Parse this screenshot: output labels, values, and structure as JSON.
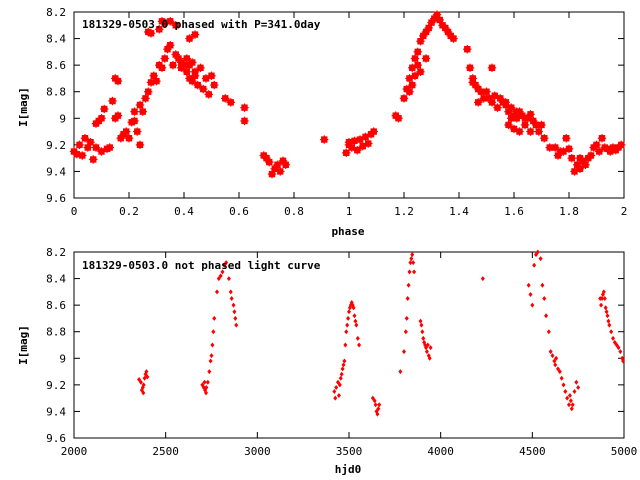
{
  "colors": {
    "data": "#ff0000",
    "axis": "#000000",
    "background": "#ffffff"
  },
  "chart_data": [
    {
      "type": "scatter",
      "title": "181329-0503.0 phased with P=341.0day",
      "xlabel": "phase",
      "ylabel": "I[mag]",
      "xlim": [
        0,
        2
      ],
      "ylim": [
        9.6,
        8.2
      ],
      "y_inverted": true,
      "xticks": [
        "0",
        "0.2",
        "0.4",
        "0.6",
        "0.8",
        "1",
        "1.2",
        "1.4",
        "1.6",
        "1.8",
        "2"
      ],
      "yticks": [
        "8.2",
        "8.4",
        "8.6",
        "8.8",
        "9",
        "9.2",
        "9.4",
        "9.6"
      ],
      "grid": false,
      "marker": "filled-box-large",
      "points": [
        [
          0.0,
          9.25
        ],
        [
          0.01,
          9.27
        ],
        [
          0.02,
          9.2
        ],
        [
          0.03,
          9.28
        ],
        [
          0.04,
          9.15
        ],
        [
          0.05,
          9.22
        ],
        [
          0.06,
          9.18
        ],
        [
          0.07,
          9.31
        ],
        [
          0.08,
          9.04
        ],
        [
          0.09,
          9.02
        ],
        [
          0.1,
          9.0
        ],
        [
          0.08,
          9.22
        ],
        [
          0.1,
          9.25
        ],
        [
          0.11,
          8.93
        ],
        [
          0.12,
          9.23
        ],
        [
          0.13,
          9.22
        ],
        [
          0.14,
          8.87
        ],
        [
          0.15,
          9.0
        ],
        [
          0.16,
          8.98
        ],
        [
          0.17,
          9.15
        ],
        [
          0.18,
          9.12
        ],
        [
          0.19,
          9.1
        ],
        [
          0.15,
          8.7
        ],
        [
          0.16,
          8.72
        ],
        [
          0.2,
          9.15
        ],
        [
          0.21,
          9.03
        ],
        [
          0.22,
          9.02
        ],
        [
          0.23,
          9.1
        ],
        [
          0.24,
          9.2
        ],
        [
          0.25,
          8.95
        ],
        [
          0.26,
          8.85
        ],
        [
          0.27,
          8.8
        ],
        [
          0.28,
          8.73
        ],
        [
          0.29,
          8.68
        ],
        [
          0.3,
          8.72
        ],
        [
          0.31,
          8.6
        ],
        [
          0.32,
          8.62
        ],
        [
          0.33,
          8.55
        ],
        [
          0.34,
          8.48
        ],
        [
          0.35,
          8.45
        ],
        [
          0.36,
          8.6
        ],
        [
          0.37,
          8.52
        ],
        [
          0.38,
          8.55
        ],
        [
          0.39,
          8.58
        ],
        [
          0.4,
          8.6
        ],
        [
          0.41,
          8.65
        ],
        [
          0.42,
          8.7
        ],
        [
          0.43,
          8.72
        ],
        [
          0.44,
          8.68
        ],
        [
          0.45,
          8.75
        ],
        [
          0.46,
          8.62
        ],
        [
          0.47,
          8.78
        ],
        [
          0.48,
          8.7
        ],
        [
          0.49,
          8.82
        ],
        [
          0.5,
          8.68
        ],
        [
          0.51,
          8.75
        ],
        [
          0.27,
          8.35
        ],
        [
          0.28,
          8.36
        ],
        [
          0.31,
          8.33
        ],
        [
          0.32,
          8.27
        ],
        [
          0.33,
          8.28
        ],
        [
          0.35,
          8.27
        ],
        [
          0.37,
          8.3
        ],
        [
          0.42,
          8.4
        ],
        [
          0.44,
          8.37
        ],
        [
          0.39,
          8.62
        ],
        [
          0.41,
          8.55
        ],
        [
          0.42,
          8.6
        ],
        [
          0.43,
          8.58
        ],
        [
          0.44,
          8.65
        ],
        [
          0.24,
          8.9
        ],
        [
          0.22,
          8.95
        ],
        [
          0.55,
          8.85
        ],
        [
          0.57,
          8.88
        ],
        [
          0.62,
          9.02
        ],
        [
          0.62,
          8.92
        ],
        [
          0.69,
          9.28
        ],
        [
          0.7,
          9.3
        ],
        [
          0.71,
          9.33
        ],
        [
          0.72,
          9.42
        ],
        [
          0.73,
          9.38
        ],
        [
          0.74,
          9.35
        ],
        [
          0.75,
          9.4
        ],
        [
          0.76,
          9.32
        ],
        [
          0.77,
          9.35
        ],
        [
          0.91,
          9.16
        ],
        [
          0.99,
          9.26
        ],
        [
          1.0,
          9.2
        ],
        [
          1.0,
          9.18
        ],
        [
          1.01,
          9.22
        ],
        [
          1.02,
          9.17
        ],
        [
          1.03,
          9.24
        ],
        [
          1.04,
          9.16
        ],
        [
          1.05,
          9.21
        ],
        [
          1.06,
          9.14
        ],
        [
          1.07,
          9.19
        ],
        [
          1.08,
          9.12
        ],
        [
          1.09,
          9.1
        ],
        [
          1.17,
          8.98
        ],
        [
          1.18,
          9.0
        ],
        [
          1.2,
          8.85
        ],
        [
          1.21,
          8.78
        ],
        [
          1.22,
          8.7
        ],
        [
          1.23,
          8.62
        ],
        [
          1.24,
          8.55
        ],
        [
          1.25,
          8.5
        ],
        [
          1.26,
          8.42
        ],
        [
          1.27,
          8.38
        ],
        [
          1.28,
          8.35
        ],
        [
          1.29,
          8.32
        ],
        [
          1.3,
          8.28
        ],
        [
          1.31,
          8.25
        ],
        [
          1.32,
          8.22
        ],
        [
          1.33,
          8.26
        ],
        [
          1.34,
          8.3
        ],
        [
          1.35,
          8.32
        ],
        [
          1.36,
          8.35
        ],
        [
          1.37,
          8.38
        ],
        [
          1.38,
          8.4
        ],
        [
          1.25,
          8.6
        ],
        [
          1.26,
          8.65
        ],
        [
          1.28,
          8.55
        ],
        [
          1.22,
          8.8
        ],
        [
          1.23,
          8.75
        ],
        [
          1.24,
          8.68
        ],
        [
          1.43,
          8.48
        ],
        [
          1.44,
          8.62
        ],
        [
          1.45,
          8.7
        ],
        [
          1.46,
          8.75
        ],
        [
          1.47,
          8.78
        ],
        [
          1.48,
          8.8
        ],
        [
          1.49,
          8.85
        ],
        [
          1.5,
          8.8
        ],
        [
          1.51,
          8.85
        ],
        [
          1.52,
          8.88
        ],
        [
          1.53,
          8.83
        ],
        [
          1.54,
          8.92
        ],
        [
          1.55,
          8.85
        ],
        [
          1.56,
          8.88
        ],
        [
          1.57,
          8.9
        ],
        [
          1.58,
          8.95
        ],
        [
          1.59,
          8.92
        ],
        [
          1.6,
          8.98
        ],
        [
          1.61,
          9.0
        ],
        [
          1.62,
          8.95
        ],
        [
          1.63,
          8.98
        ],
        [
          1.64,
          9.05
        ],
        [
          1.65,
          9.0
        ],
        [
          1.66,
          8.97
        ],
        [
          1.67,
          9.02
        ],
        [
          1.68,
          9.05
        ],
        [
          1.69,
          9.1
        ],
        [
          1.7,
          9.05
        ],
        [
          1.58,
          9.05
        ],
        [
          1.6,
          9.08
        ],
        [
          1.62,
          9.1
        ],
        [
          1.64,
          9.0
        ],
        [
          1.66,
          9.1
        ],
        [
          1.59,
          9.0
        ],
        [
          1.61,
          8.95
        ],
        [
          1.57,
          8.88
        ],
        [
          1.52,
          8.62
        ],
        [
          1.45,
          8.73
        ],
        [
          1.47,
          8.88
        ],
        [
          1.71,
          9.15
        ],
        [
          1.73,
          9.22
        ],
        [
          1.75,
          9.22
        ],
        [
          1.76,
          9.28
        ],
        [
          1.77,
          9.25
        ],
        [
          1.78,
          9.25
        ],
        [
          1.81,
          9.3
        ],
        [
          1.83,
          9.35
        ],
        [
          1.84,
          9.3
        ],
        [
          1.85,
          9.32
        ],
        [
          1.86,
          9.35
        ],
        [
          1.87,
          9.3
        ],
        [
          1.88,
          9.28
        ],
        [
          1.89,
          9.22
        ],
        [
          1.9,
          9.2
        ],
        [
          1.91,
          9.25
        ],
        [
          1.92,
          9.15
        ],
        [
          1.93,
          9.22
        ],
        [
          1.94,
          9.23
        ],
        [
          1.95,
          9.25
        ],
        [
          1.96,
          9.22
        ],
        [
          1.97,
          9.24
        ],
        [
          1.98,
          9.22
        ],
        [
          1.99,
          9.2
        ],
        [
          1.82,
          9.4
        ],
        [
          1.84,
          9.38
        ],
        [
          1.79,
          9.15
        ],
        [
          1.8,
          9.23
        ]
      ]
    },
    {
      "type": "scatter",
      "title": "181329-0503.0 not phased light curve",
      "xlabel": "hjd0",
      "ylabel": "I[mag]",
      "xlim": [
        2000,
        5000
      ],
      "ylim": [
        9.6,
        8.2
      ],
      "y_inverted": true,
      "xticks": [
        "2000",
        "2500",
        "3000",
        "3500",
        "4000",
        "4500",
        "5000"
      ],
      "yticks": [
        "8.2",
        "8.4",
        "8.6",
        "8.8",
        "9",
        "9.2",
        "9.4",
        "9.6"
      ],
      "grid": false,
      "marker": "small-diamond",
      "points": [
        [
          2355,
          9.16
        ],
        [
          2365,
          9.18
        ],
        [
          2370,
          9.24
        ],
        [
          2375,
          9.22
        ],
        [
          2380,
          9.2
        ],
        [
          2385,
          9.15
        ],
        [
          2390,
          9.12
        ],
        [
          2395,
          9.1
        ],
        [
          2400,
          9.14
        ],
        [
          2378,
          9.26
        ],
        [
          2700,
          9.2
        ],
        [
          2708,
          9.22
        ],
        [
          2715,
          9.24
        ],
        [
          2722,
          9.22
        ],
        [
          2730,
          9.18
        ],
        [
          2738,
          9.1
        ],
        [
          2745,
          9.02
        ],
        [
          2750,
          8.98
        ],
        [
          2755,
          8.9
        ],
        [
          2760,
          8.8
        ],
        [
          2765,
          8.7
        ],
        [
          2780,
          8.5
        ],
        [
          2790,
          8.4
        ],
        [
          2800,
          8.38
        ],
        [
          2810,
          8.35
        ],
        [
          2820,
          8.3
        ],
        [
          2830,
          8.28
        ],
        [
          2845,
          8.4
        ],
        [
          2855,
          8.5
        ],
        [
          2860,
          8.55
        ],
        [
          2870,
          8.6
        ],
        [
          2875,
          8.65
        ],
        [
          2880,
          8.7
        ],
        [
          2885,
          8.75
        ],
        [
          2720,
          9.26
        ],
        [
          2712,
          9.18
        ],
        [
          3420,
          9.25
        ],
        [
          3425,
          9.3
        ],
        [
          3430,
          9.22
        ],
        [
          3440,
          9.18
        ],
        [
          3450,
          9.2
        ],
        [
          3460,
          9.12
        ],
        [
          3465,
          9.08
        ],
        [
          3470,
          9.05
        ],
        [
          3475,
          9.02
        ],
        [
          3480,
          8.9
        ],
        [
          3485,
          8.8
        ],
        [
          3490,
          8.75
        ],
        [
          3495,
          8.7
        ],
        [
          3500,
          8.65
        ],
        [
          3505,
          8.62
        ],
        [
          3510,
          8.6
        ],
        [
          3515,
          8.58
        ],
        [
          3520,
          8.6
        ],
        [
          3525,
          8.62
        ],
        [
          3530,
          8.68
        ],
        [
          3535,
          8.72
        ],
        [
          3540,
          8.75
        ],
        [
          3548,
          8.85
        ],
        [
          3555,
          8.9
        ],
        [
          3445,
          9.28
        ],
        [
          3455,
          9.15
        ],
        [
          3630,
          9.3
        ],
        [
          3640,
          9.32
        ],
        [
          3645,
          9.35
        ],
        [
          3650,
          9.4
        ],
        [
          3655,
          9.42
        ],
        [
          3660,
          9.38
        ],
        [
          3665,
          9.35
        ],
        [
          3780,
          9.1
        ],
        [
          3800,
          8.95
        ],
        [
          3810,
          8.8
        ],
        [
          3815,
          8.7
        ],
        [
          3820,
          8.55
        ],
        [
          3825,
          8.45
        ],
        [
          3830,
          8.35
        ],
        [
          3835,
          8.28
        ],
        [
          3840,
          8.25
        ],
        [
          3845,
          8.22
        ],
        [
          3850,
          8.28
        ],
        [
          3855,
          8.35
        ],
        [
          3890,
          8.72
        ],
        [
          3895,
          8.75
        ],
        [
          3900,
          8.8
        ],
        [
          3905,
          8.85
        ],
        [
          3910,
          8.88
        ],
        [
          3915,
          8.9
        ],
        [
          3920,
          8.92
        ],
        [
          3925,
          8.95
        ],
        [
          3930,
          8.9
        ],
        [
          3935,
          8.98
        ],
        [
          3940,
          9.0
        ],
        [
          3945,
          8.92
        ],
        [
          4230,
          8.4
        ],
        [
          4480,
          8.45
        ],
        [
          4490,
          8.52
        ],
        [
          4500,
          8.6
        ],
        [
          4510,
          8.3
        ],
        [
          4520,
          8.22
        ],
        [
          4530,
          8.2
        ],
        [
          4545,
          8.25
        ],
        [
          4555,
          8.45
        ],
        [
          4565,
          8.55
        ],
        [
          4575,
          8.68
        ],
        [
          4590,
          8.8
        ],
        [
          4600,
          8.95
        ],
        [
          4610,
          8.98
        ],
        [
          4620,
          9.02
        ],
        [
          4625,
          9.05
        ],
        [
          4630,
          9.0
        ],
        [
          4640,
          9.08
        ],
        [
          4650,
          9.1
        ],
        [
          4660,
          9.15
        ],
        [
          4670,
          9.2
        ],
        [
          4680,
          9.25
        ],
        [
          4690,
          9.3
        ],
        [
          4700,
          9.35
        ],
        [
          4705,
          9.28
        ],
        [
          4710,
          9.32
        ],
        [
          4715,
          9.38
        ],
        [
          4720,
          9.35
        ],
        [
          4730,
          9.25
        ],
        [
          4740,
          9.18
        ],
        [
          4750,
          9.22
        ],
        [
          4870,
          8.55
        ],
        [
          4875,
          8.6
        ],
        [
          4880,
          8.55
        ],
        [
          4885,
          8.52
        ],
        [
          4890,
          8.5
        ],
        [
          4895,
          8.55
        ],
        [
          4900,
          8.62
        ],
        [
          4905,
          8.65
        ],
        [
          4910,
          8.68
        ],
        [
          4915,
          8.72
        ],
        [
          4920,
          8.75
        ],
        [
          4930,
          8.8
        ],
        [
          4940,
          8.85
        ],
        [
          4950,
          8.88
        ],
        [
          4960,
          8.9
        ],
        [
          4970,
          8.92
        ],
        [
          4980,
          8.95
        ],
        [
          4990,
          9.0
        ],
        [
          4995,
          9.02
        ]
      ]
    }
  ]
}
